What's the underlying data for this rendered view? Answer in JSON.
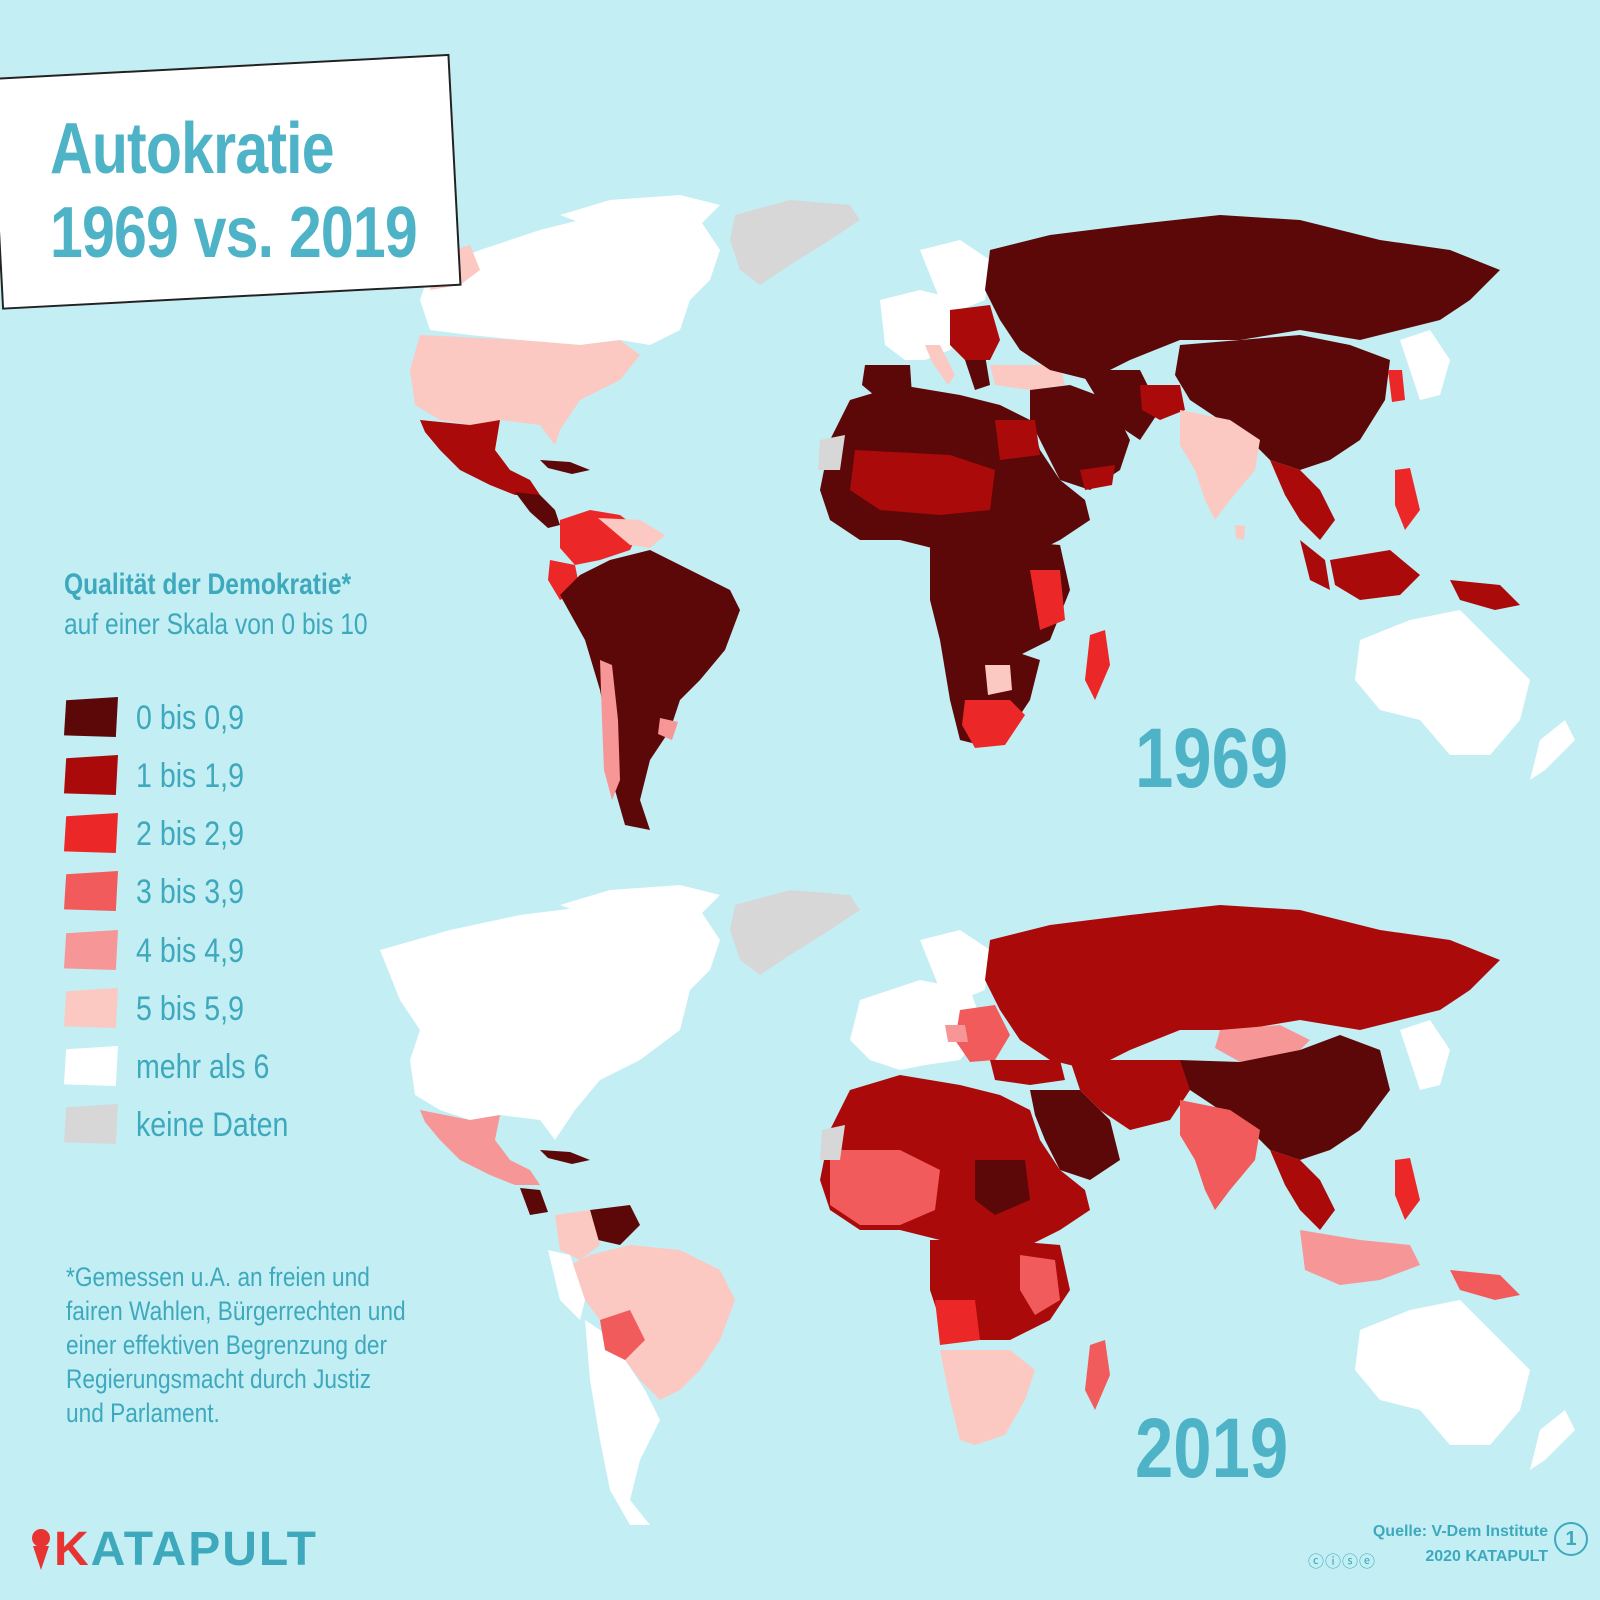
{
  "title": {
    "line1": "Autokratie",
    "line2": "1969 vs. 2019"
  },
  "legend": {
    "title": "Qualität der Demokratie*",
    "subtitle": "auf einer Skala von 0 bis 10",
    "items": [
      {
        "label": "0 bis 0,9",
        "color": "#5c0808"
      },
      {
        "label": "1 bis 1,9",
        "color": "#ab0a0a"
      },
      {
        "label": "2 bis 2,9",
        "color": "#ec2727"
      },
      {
        "label": "3 bis 3,9",
        "color": "#f25b5b"
      },
      {
        "label": "4 bis 4,9",
        "color": "#f69696"
      },
      {
        "label": "5 bis 5,9",
        "color": "#fbc9c1"
      },
      {
        "label": "mehr als 6",
        "color": "#ffffff"
      },
      {
        "label": "keine Daten",
        "color": "#d7d7d7"
      }
    ]
  },
  "maps": [
    {
      "year": "1969"
    },
    {
      "year": "2019"
    }
  ],
  "footnote": {
    "lines": [
      "*Gemessen u.A. an freien und",
      "fairen Wahlen, Bürgerrechten und",
      "einer effektiven Begrenzung der",
      "Regierungsmacht durch Justiz",
      "und Parlament."
    ]
  },
  "brand": {
    "k": "K",
    "rest": "ATAPULT"
  },
  "credits": {
    "source": "Quelle: V-Dem Institute",
    "copyright": "2020 KATAPULT",
    "cc_icons": "ⓒⓘⓢⓔ",
    "edition": "1"
  }
}
